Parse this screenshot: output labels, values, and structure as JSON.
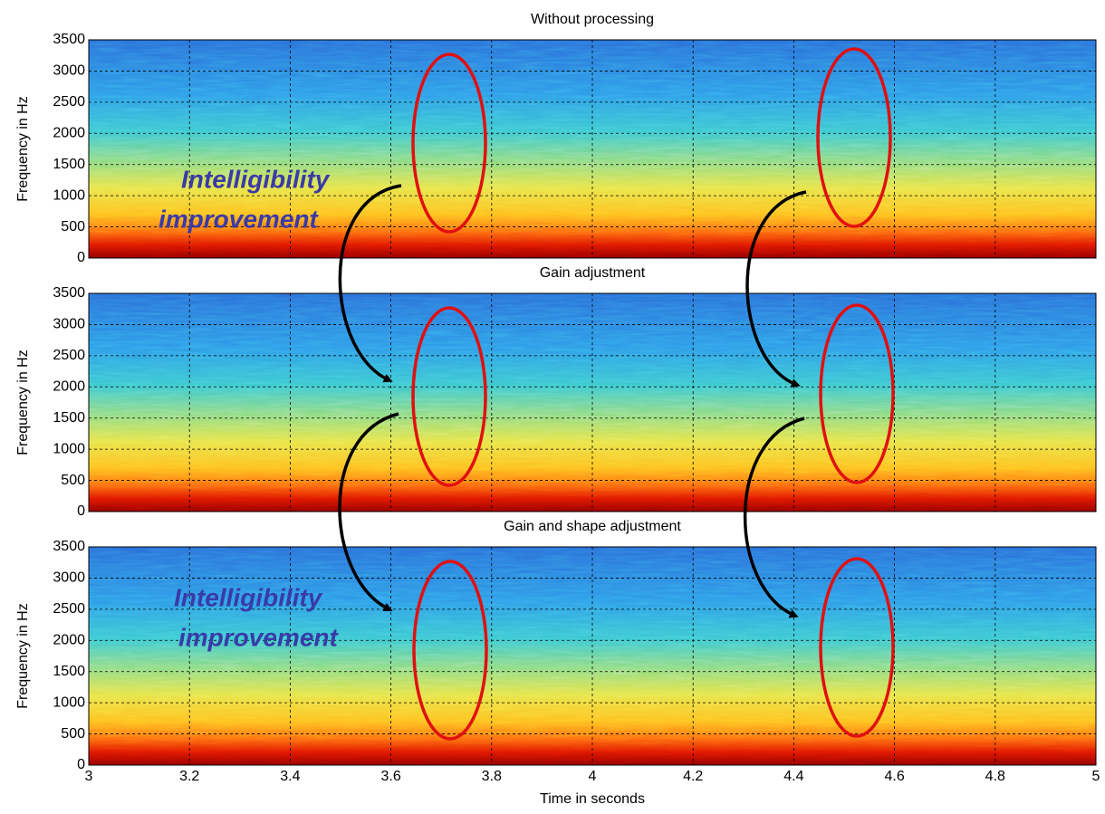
{
  "chart_data": [
    {
      "type": "spectrogram",
      "title": "Without processing",
      "ylabel": "Frequency in Hz",
      "ylim": [
        0,
        3500
      ],
      "yticks": [
        0,
        500,
        1000,
        1500,
        2000,
        2500,
        3000,
        3500
      ],
      "grid": true,
      "annotation": [
        "Intelligibility",
        "improvement"
      ]
    },
    {
      "type": "spectrogram",
      "title": "Gain adjustment",
      "ylabel": "Frequency in Hz",
      "ylim": [
        0,
        3500
      ],
      "yticks": [
        0,
        500,
        1000,
        1500,
        2000,
        2500,
        3000,
        3500
      ],
      "grid": true
    },
    {
      "type": "spectrogram",
      "title": "Gain and shape adjustment",
      "ylabel": "Frequency in Hz",
      "xlabel": "Time in seconds",
      "xlim": [
        3,
        5
      ],
      "xticks": [
        3,
        3.2,
        3.4,
        3.6,
        3.8,
        4,
        4.2,
        4.4,
        4.6,
        4.8,
        5
      ],
      "ylim": [
        0,
        3500
      ],
      "yticks": [
        0,
        500,
        1000,
        1500,
        2000,
        2500,
        3000,
        3500
      ],
      "grid": true,
      "annotation": [
        "Intelligibility",
        "improvement"
      ]
    }
  ]
}
